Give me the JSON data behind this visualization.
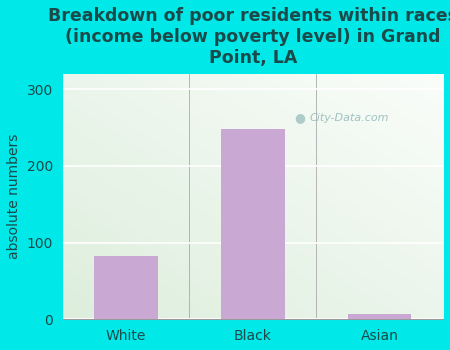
{
  "title": "Breakdown of poor residents within races\n(income below poverty level) in Grand\nPoint, LA",
  "categories": [
    "White",
    "Black",
    "Asian"
  ],
  "values": [
    83,
    248,
    7
  ],
  "bar_color": "#c9a8d4",
  "ylabel": "absolute numbers",
  "ylim": [
    0,
    320
  ],
  "yticks": [
    0,
    100,
    200,
    300
  ],
  "background_cyan": "#00e8e8",
  "title_color": "#1a4a4a",
  "watermark": "City-Data.com",
  "title_fontsize": 12.5,
  "label_fontsize": 10,
  "tick_fontsize": 10,
  "grad_top_left": "#e8f2e0",
  "grad_top_right": "#f8fdf5",
  "grad_bottom_left": "#ddeedd",
  "grad_bottom_right": "#f0faf0"
}
